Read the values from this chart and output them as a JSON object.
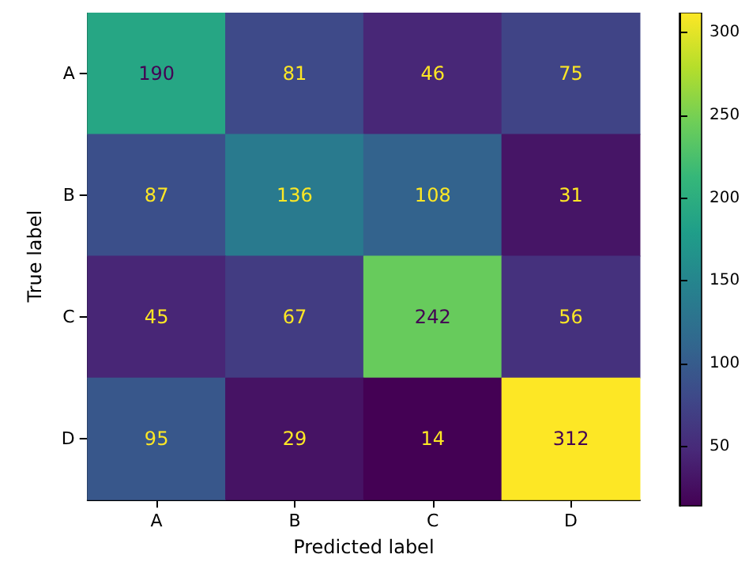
{
  "chart_data": {
    "type": "heatmap",
    "xlabel": "Predicted label",
    "ylabel": "True label",
    "categories": [
      "A",
      "B",
      "C",
      "D"
    ],
    "y_categories": [
      "A",
      "B",
      "C",
      "D"
    ],
    "cells": [
      [
        190,
        81,
        46,
        75
      ],
      [
        87,
        136,
        108,
        31
      ],
      [
        45,
        67,
        242,
        56
      ],
      [
        95,
        29,
        14,
        312
      ]
    ],
    "clim": [
      14,
      312
    ],
    "cticks": [
      50,
      100,
      150,
      200,
      250,
      300
    ],
    "data_labels": true
  }
}
